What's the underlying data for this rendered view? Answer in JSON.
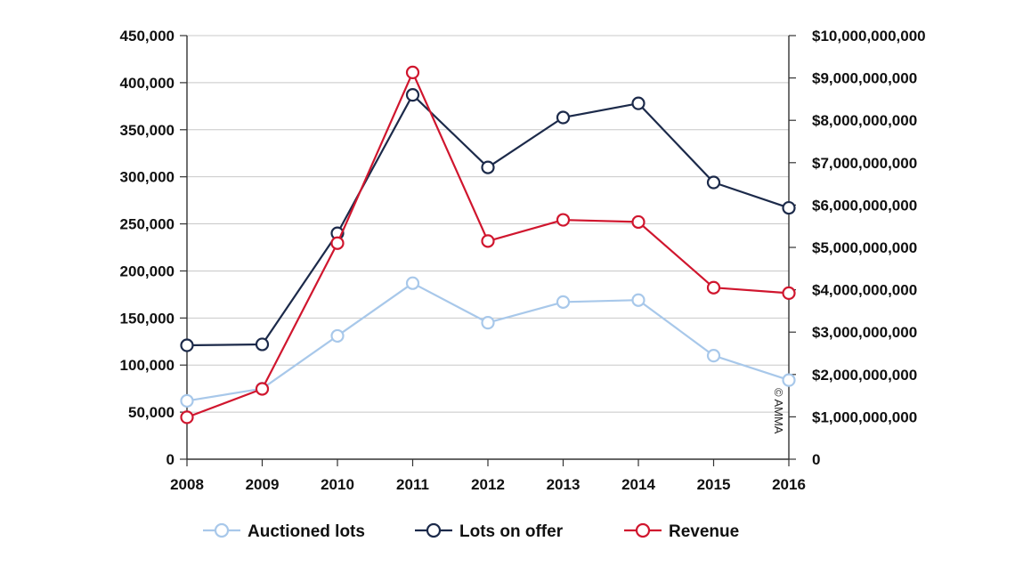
{
  "chart_data": {
    "type": "line",
    "title": "",
    "xlabel": "",
    "ylabel": "",
    "x": [
      "2008",
      "2009",
      "2010",
      "2011",
      "2012",
      "2013",
      "2014",
      "2015",
      "2016"
    ],
    "ylim_left": [
      0,
      450000
    ],
    "ylim_right": [
      0,
      10000000000
    ],
    "left_ticks": [
      "0",
      "50,000",
      "100,000",
      "150,000",
      "200,000",
      "250,000",
      "300,000",
      "350,000",
      "400,000",
      "450,000"
    ],
    "right_ticks": [
      "0",
      "$1,000,000,000",
      "$2,000,000,000",
      "$3,000,000,000",
      "$4,000,000,000",
      "$5,000,000,000",
      "$6,000,000,000",
      "$7,000,000,000",
      "$8,000,000,000",
      "$9,000,000,000",
      "$10,000,000,000"
    ],
    "grid": true,
    "legend_position": "bottom",
    "series": [
      {
        "name": "Auctioned lots",
        "axis": "left",
        "color": "#a8c8ea",
        "values": [
          62000,
          75000,
          131000,
          187000,
          145000,
          167000,
          169000,
          110000,
          84000
        ]
      },
      {
        "name": "Lots on offer",
        "axis": "left",
        "color": "#1c2a4a",
        "values": [
          121000,
          122000,
          240000,
          387000,
          310000,
          363000,
          378000,
          294000,
          267000
        ]
      },
      {
        "name": "Revenue",
        "axis": "right",
        "color": "#d0162e",
        "values": [
          990000000,
          1660000000,
          5100000000,
          9130000000,
          5150000000,
          5650000000,
          5600000000,
          4050000000,
          3920000000
        ]
      }
    ],
    "copyright": "© AMMA"
  }
}
